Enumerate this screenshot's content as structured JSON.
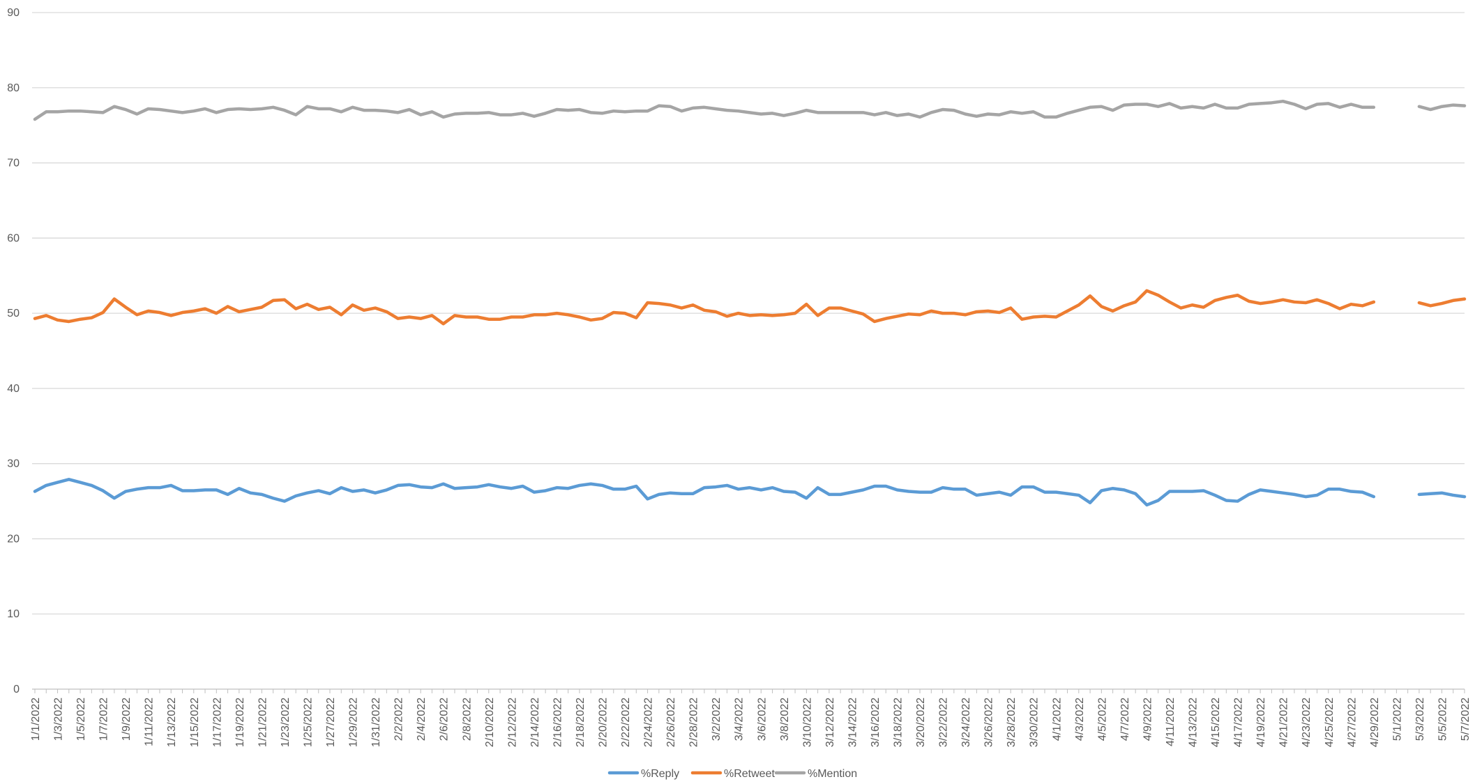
{
  "chart_data": {
    "type": "line",
    "title": "",
    "xlabel": "",
    "ylabel": "",
    "ylim": [
      0,
      90
    ],
    "yticks": [
      0,
      10,
      20,
      30,
      40,
      50,
      60,
      70,
      80,
      90
    ],
    "grid": true,
    "legend": "bottom",
    "start_date": "2022-01-01",
    "x_label_step_days": 2,
    "x_tick_labels": [
      "1/1/2022",
      "1/3/2022",
      "1/5/2022",
      "1/7/2022",
      "1/9/2022",
      "1/11/2022",
      "1/13/2022",
      "1/15/2022",
      "1/17/2022",
      "1/19/2022",
      "1/21/2022",
      "1/23/2022",
      "1/25/2022",
      "1/27/2022",
      "1/29/2022",
      "1/31/2022",
      "2/2/2022",
      "2/4/2022",
      "2/6/2022",
      "2/8/2022",
      "2/10/2022",
      "2/12/2022",
      "2/14/2022",
      "2/16/2022",
      "2/18/2022",
      "2/20/2022",
      "2/22/2022",
      "2/24/2022",
      "2/26/2022",
      "2/28/2022",
      "3/2/2022",
      "3/4/2022",
      "3/6/2022",
      "3/8/2022",
      "3/10/2022",
      "3/12/2022",
      "3/14/2022",
      "3/16/2022",
      "3/18/2022",
      "3/20/2022",
      "3/22/2022",
      "3/24/2022",
      "3/26/2022",
      "3/28/2022",
      "3/30/2022",
      "4/1/2022",
      "4/3/2022",
      "4/5/2022",
      "4/7/2022",
      "4/9/2022",
      "4/11/2022",
      "4/13/2022",
      "4/15/2022",
      "4/17/2022",
      "4/19/2022",
      "4/21/2022",
      "4/23/2022",
      "4/25/2022",
      "4/27/2022",
      "4/29/2022",
      "5/1/2022",
      "5/3/2022",
      "5/5/2022",
      "5/7/2022"
    ],
    "series": [
      {
        "name": "%Reply",
        "color": "#5b9bd5",
        "values": [
          26.3,
          27.1,
          27.5,
          27.9,
          27.5,
          27.1,
          26.4,
          25.4,
          26.3,
          26.6,
          26.8,
          26.8,
          27.1,
          26.4,
          26.4,
          26.5,
          26.5,
          25.9,
          26.7,
          26.1,
          25.9,
          25.4,
          25.0,
          25.7,
          26.1,
          26.4,
          26.0,
          26.8,
          26.3,
          26.5,
          26.1,
          26.5,
          27.1,
          27.2,
          26.9,
          26.8,
          27.3,
          26.7,
          26.8,
          26.9,
          27.2,
          26.9,
          26.7,
          27.0,
          26.2,
          26.4,
          26.8,
          26.7,
          27.1,
          27.3,
          27.1,
          26.6,
          26.6,
          27.0,
          25.3,
          25.9,
          26.1,
          26.0,
          26.0,
          26.8,
          26.9,
          27.1,
          26.6,
          26.8,
          26.5,
          26.8,
          26.3,
          26.2,
          25.4,
          26.8,
          25.9,
          25.9,
          26.2,
          26.5,
          27.0,
          27.0,
          26.5,
          26.3,
          26.2,
          26.2,
          26.8,
          26.6,
          26.6,
          25.8,
          26.0,
          26.2,
          25.8,
          26.9,
          26.9,
          26.2,
          26.2,
          26.0,
          25.8,
          24.8,
          26.4,
          26.7,
          26.5,
          26.0,
          24.5,
          25.1,
          26.3,
          26.3,
          26.3,
          26.4,
          25.8,
          25.1,
          25.0,
          25.9,
          26.5,
          26.3,
          26.1,
          25.9,
          25.6,
          25.8,
          26.6,
          26.6,
          26.3,
          26.2,
          25.6,
          null,
          null,
          null,
          25.9,
          26.0,
          26.1,
          25.8,
          25.6
        ]
      },
      {
        "name": "%Retweet",
        "color": "#ed7d31",
        "values": [
          49.3,
          49.7,
          49.1,
          48.9,
          49.2,
          49.4,
          50.1,
          51.9,
          50.8,
          49.8,
          50.3,
          50.1,
          49.7,
          50.1,
          50.3,
          50.6,
          50.0,
          50.9,
          50.2,
          50.5,
          50.8,
          51.7,
          51.8,
          50.6,
          51.2,
          50.5,
          50.8,
          49.8,
          51.1,
          50.4,
          50.7,
          50.2,
          49.3,
          49.5,
          49.3,
          49.7,
          48.6,
          49.7,
          49.5,
          49.5,
          49.2,
          49.2,
          49.5,
          49.5,
          49.8,
          49.8,
          50.0,
          49.8,
          49.5,
          49.1,
          49.3,
          50.1,
          50.0,
          49.4,
          51.4,
          51.3,
          51.1,
          50.7,
          51.1,
          50.4,
          50.2,
          49.6,
          50.0,
          49.7,
          49.8,
          49.7,
          49.8,
          50.0,
          51.2,
          49.7,
          50.7,
          50.7,
          50.3,
          49.9,
          48.9,
          49.3,
          49.6,
          49.9,
          49.8,
          50.3,
          50.0,
          50.0,
          49.8,
          50.2,
          50.3,
          50.1,
          50.7,
          49.2,
          49.5,
          49.6,
          49.5,
          50.3,
          51.1,
          52.3,
          50.9,
          50.3,
          51.0,
          51.5,
          53.0,
          52.4,
          51.5,
          50.7,
          51.1,
          50.8,
          51.7,
          52.1,
          52.4,
          51.6,
          51.3,
          51.5,
          51.8,
          51.5,
          51.4,
          51.8,
          51.3,
          50.6,
          51.2,
          51.0,
          51.5,
          null,
          null,
          null,
          51.4,
          51.0,
          51.3,
          51.7,
          51.9
        ]
      },
      {
        "name": "%Mention",
        "color": "#a5a5a5",
        "values": [
          75.8,
          76.8,
          76.8,
          76.9,
          76.9,
          76.8,
          76.7,
          77.5,
          77.1,
          76.5,
          77.2,
          77.1,
          76.9,
          76.7,
          76.9,
          77.2,
          76.7,
          77.1,
          77.2,
          77.1,
          77.2,
          77.4,
          77.0,
          76.4,
          77.5,
          77.2,
          77.2,
          76.8,
          77.4,
          77.0,
          77.0,
          76.9,
          76.7,
          77.1,
          76.4,
          76.8,
          76.1,
          76.5,
          76.6,
          76.6,
          76.7,
          76.4,
          76.4,
          76.6,
          76.2,
          76.6,
          77.1,
          77.0,
          77.1,
          76.7,
          76.6,
          76.9,
          76.8,
          76.9,
          76.9,
          77.6,
          77.5,
          76.9,
          77.3,
          77.4,
          77.2,
          77.0,
          76.9,
          76.7,
          76.5,
          76.6,
          76.3,
          76.6,
          77.0,
          76.7,
          76.7,
          76.7,
          76.7,
          76.7,
          76.4,
          76.7,
          76.3,
          76.5,
          76.1,
          76.7,
          77.1,
          77.0,
          76.5,
          76.2,
          76.5,
          76.4,
          76.8,
          76.6,
          76.8,
          76.1,
          76.1,
          76.6,
          77.0,
          77.4,
          77.5,
          77.0,
          77.7,
          77.8,
          77.8,
          77.5,
          77.9,
          77.3,
          77.5,
          77.3,
          77.8,
          77.3,
          77.3,
          77.8,
          77.9,
          78.0,
          78.2,
          77.8,
          77.2,
          77.8,
          77.9,
          77.4,
          77.8,
          77.4,
          77.4,
          null,
          null,
          null,
          77.5,
          77.1,
          77.5,
          77.7,
          77.6
        ]
      }
    ]
  }
}
